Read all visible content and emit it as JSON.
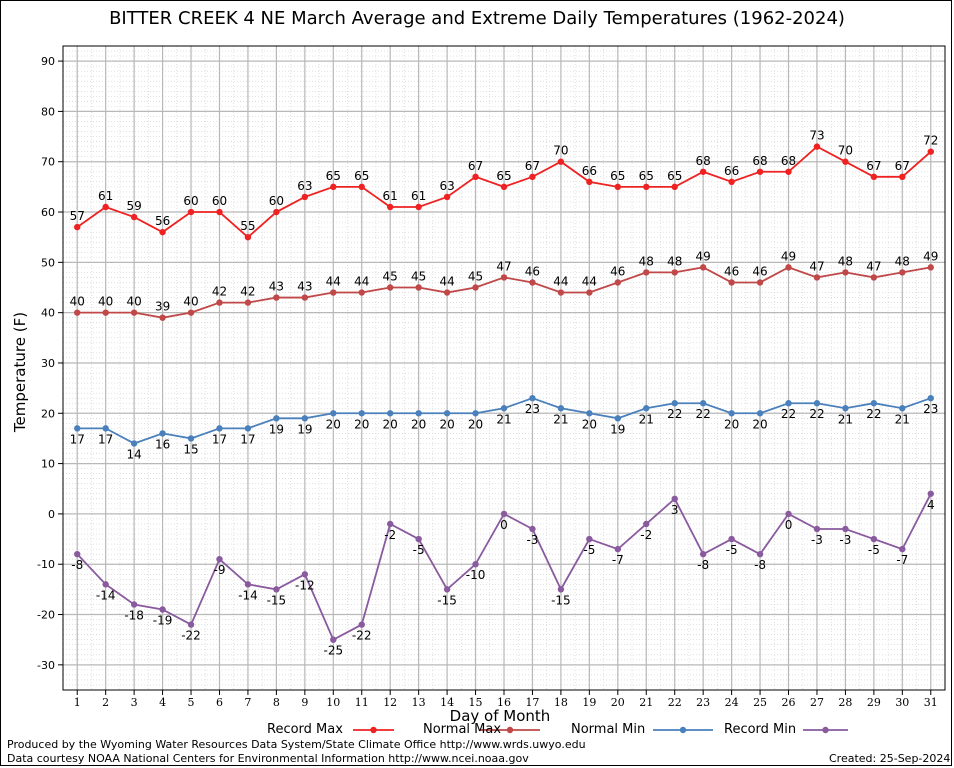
{
  "chart_data": {
    "type": "line",
    "title": "BITTER CREEK 4 NE March Average and Extreme Daily Temperatures (1962-2024)",
    "xlabel": "Day of Month",
    "ylabel": "Temperature (F)",
    "ylim": [
      -35,
      93
    ],
    "yticks": [
      -30,
      -20,
      -10,
      0,
      10,
      20,
      30,
      40,
      50,
      60,
      70,
      80,
      90
    ],
    "x": [
      1,
      2,
      3,
      4,
      5,
      6,
      7,
      8,
      9,
      10,
      11,
      12,
      13,
      14,
      15,
      16,
      17,
      18,
      19,
      20,
      21,
      22,
      23,
      24,
      25,
      26,
      27,
      28,
      29,
      30,
      31
    ],
    "grid": true,
    "legend_placement": "bottom",
    "series": [
      {
        "name": "Record Max",
        "color": "#ee2222",
        "label_pos": "above",
        "values": [
          57,
          61,
          59,
          56,
          60,
          60,
          55,
          60,
          63,
          65,
          65,
          61,
          61,
          63,
          67,
          65,
          67,
          70,
          66,
          65,
          65,
          65,
          68,
          66,
          68,
          68,
          73,
          70,
          67,
          67,
          72
        ]
      },
      {
        "name": "Normal Max",
        "color": "#c04848",
        "label_pos": "above",
        "values": [
          40,
          40,
          40,
          39,
          40,
          42,
          42,
          43,
          43,
          44,
          44,
          45,
          45,
          44,
          45,
          47,
          46,
          44,
          44,
          46,
          48,
          48,
          49,
          46,
          46,
          49,
          47,
          48,
          47,
          48,
          49
        ]
      },
      {
        "name": "Normal Min",
        "color": "#4a80bb",
        "label_pos": "below",
        "values": [
          17,
          17,
          14,
          16,
          15,
          17,
          17,
          19,
          19,
          20,
          20,
          20,
          20,
          20,
          20,
          21,
          23,
          21,
          20,
          19,
          21,
          22,
          22,
          20,
          20,
          22,
          22,
          21,
          22,
          21,
          23
        ]
      },
      {
        "name": "Record Min",
        "color": "#8a5a9e",
        "label_pos": "below",
        "values": [
          -8,
          -14,
          -18,
          -19,
          -22,
          -9,
          -14,
          -15,
          -12,
          -25,
          -22,
          -2,
          -5,
          -15,
          -10,
          0,
          -3,
          -15,
          -5,
          -7,
          -2,
          3,
          -8,
          -5,
          -8,
          0,
          -3,
          -3,
          -5,
          -7,
          4
        ]
      }
    ]
  },
  "footer": {
    "line1": "Produced by the Wyoming Water Resources Data System/State Climate Office http://www.wrds.uwyo.edu",
    "line2": "Data courtesy NOAA National Centers for Environmental Information http://www.ncei.noaa.gov",
    "created": "Created:  25-Sep-2024"
  }
}
